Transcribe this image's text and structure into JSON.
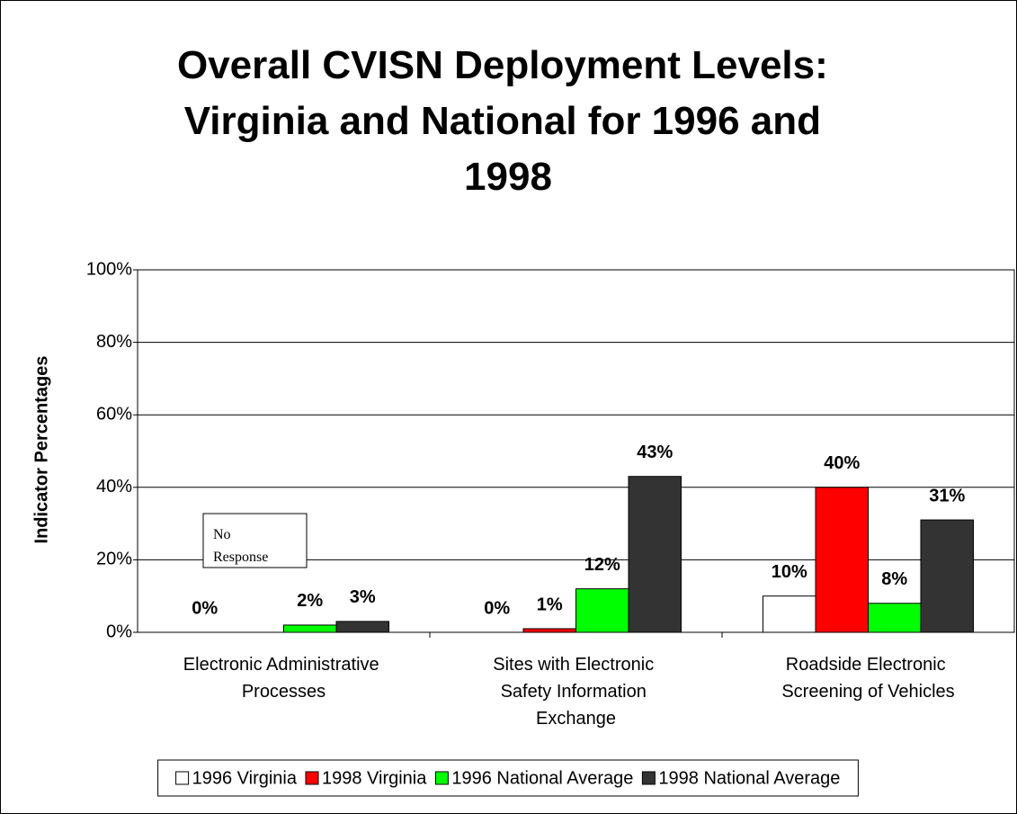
{
  "chart_data": {
    "type": "bar",
    "title": "Overall CVISN Deployment Levels: Virginia and National for 1996 and 1998",
    "y_label": "Indicator Percentages",
    "categories": [
      "Electronic Administrative Processes",
      "Sites with Electronic Safety Information Exchange",
      "Roadside Electronic Screening of Vehicles"
    ],
    "series": [
      {
        "name": "1996 Virginia",
        "color": "#ffffff",
        "values": [
          0,
          0,
          10
        ],
        "value_labels": [
          "0%",
          "0%",
          "10%"
        ]
      },
      {
        "name": "1998 Virginia",
        "color": "#ff0000",
        "values": [
          null,
          1,
          40
        ],
        "value_labels": [
          null,
          "1%",
          "40%"
        ]
      },
      {
        "name": "1996 National Average",
        "color": "#00ff00",
        "values": [
          2,
          12,
          8
        ],
        "value_labels": [
          "2%",
          "12%",
          "8%"
        ]
      },
      {
        "name": "1998 National Average",
        "color": "#333333",
        "values": [
          3,
          43,
          31
        ],
        "value_labels": [
          "3%",
          "43%",
          "31%"
        ]
      }
    ],
    "annotations": [
      "No Response"
    ],
    "ylim": [
      0,
      100
    ],
    "yticks": [
      {
        "value": 0,
        "label": "0%"
      },
      {
        "value": 20,
        "label": "20%"
      },
      {
        "value": 40,
        "label": "40%"
      },
      {
        "value": 60,
        "label": "60%"
      },
      {
        "value": 80,
        "label": "80%"
      },
      {
        "value": 100,
        "label": "100%"
      }
    ],
    "grid": true,
    "legend": "bottom"
  }
}
